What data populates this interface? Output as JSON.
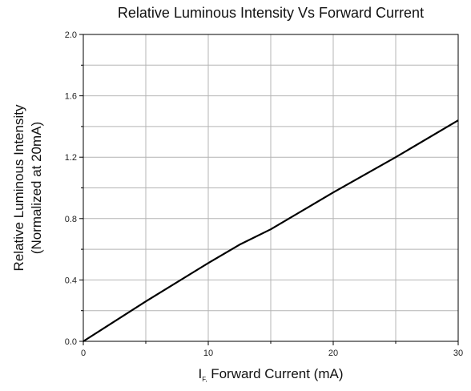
{
  "chart_data": {
    "type": "line",
    "title": "Relative Luminous Intensity Vs Forward Current",
    "xlabel": {
      "main": "I",
      "subscript": "F,",
      "rest": " Forward Current (mA)"
    },
    "ylabel": [
      "Relative Luminous Intensity",
      "(Normalized at 20mA)"
    ],
    "xlim": [
      0,
      30
    ],
    "ylim": [
      0,
      2.0
    ],
    "x_ticks": [
      0,
      10,
      20,
      30
    ],
    "y_ticks": [
      0.0,
      0.4,
      0.8,
      1.2,
      1.6,
      2.0
    ],
    "x_tick_labels": [
      "0",
      "10",
      "20",
      "30"
    ],
    "y_tick_labels": [
      "0.0",
      "0.4",
      "0.8",
      "1.2",
      "1.6",
      "2.0"
    ],
    "grid": true,
    "series": [
      {
        "x": [
          0,
          5,
          10,
          12.5,
          15,
          20,
          25,
          30
        ],
        "y": [
          0.0,
          0.26,
          0.51,
          0.63,
          0.73,
          0.97,
          1.2,
          1.44
        ]
      }
    ],
    "colors": {
      "line": "#000000",
      "grid": "#b4b4b4",
      "axis": "#000000"
    }
  }
}
